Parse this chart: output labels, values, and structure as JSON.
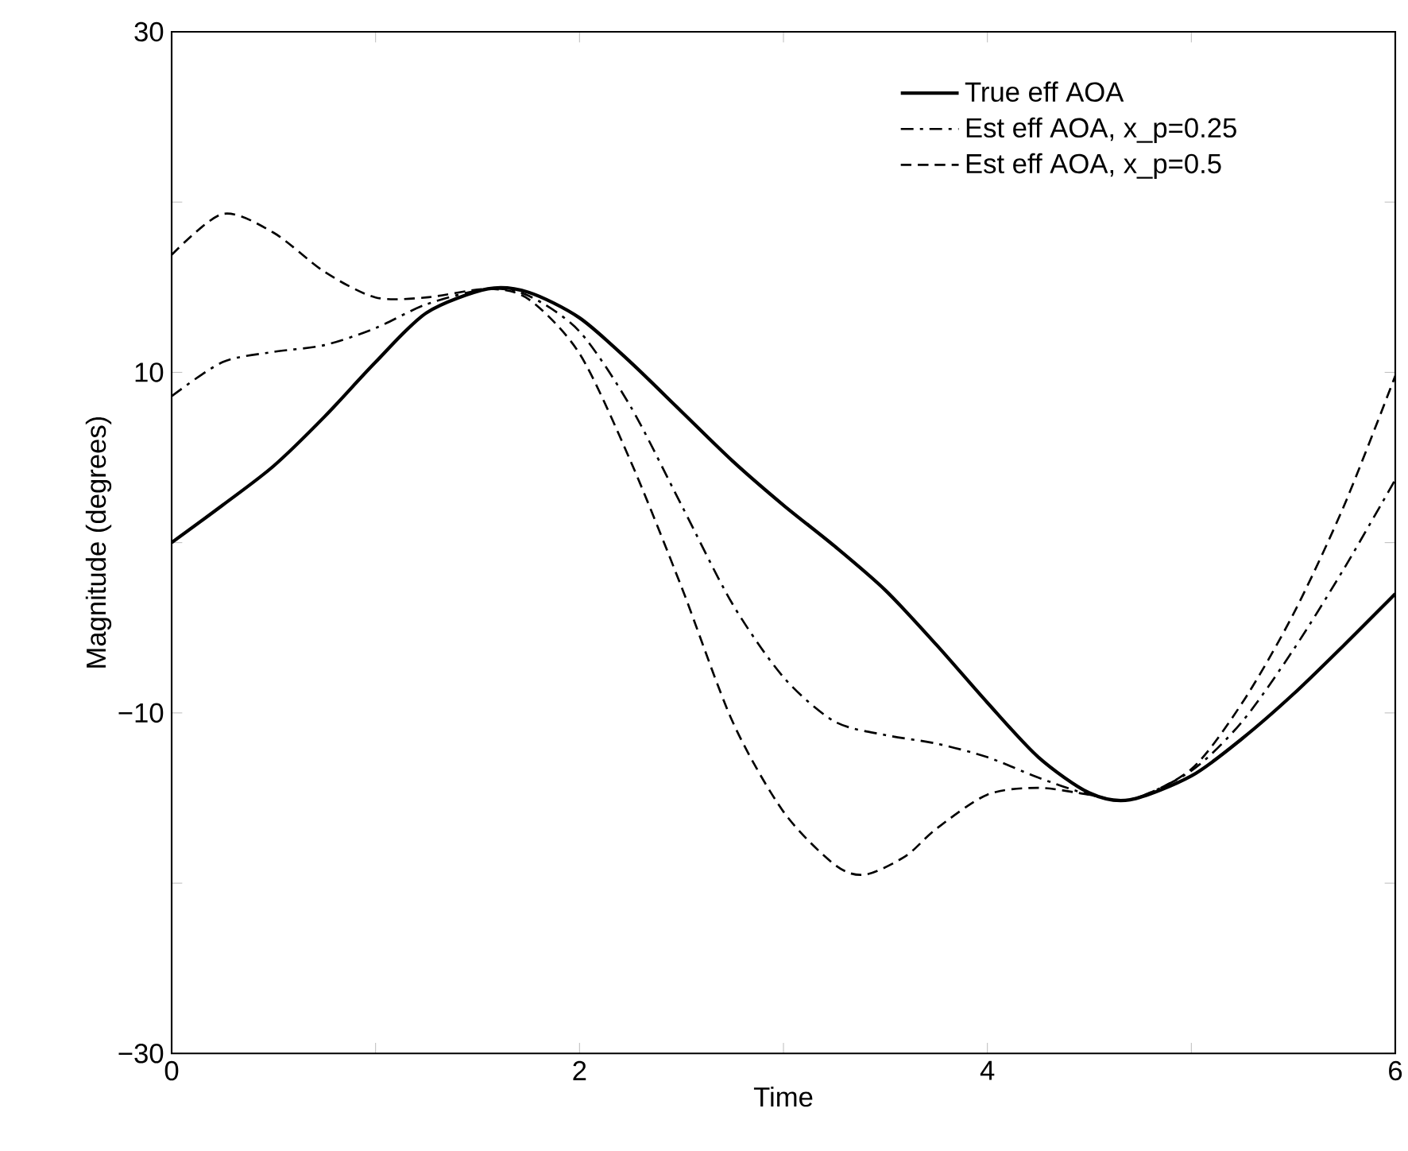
{
  "chart_data": {
    "type": "line",
    "xlabel": "Time",
    "ylabel": "Magnitude (degrees)",
    "xlim": [
      0,
      6
    ],
    "ylim": [
      -30,
      30
    ],
    "xticks": [
      0,
      {
        "value": 1,
        "label": null
      },
      2,
      {
        "value": 3,
        "label": null
      },
      4,
      {
        "value": 5,
        "label": null
      },
      6
    ],
    "yticks": [
      {
        "value": -30,
        "label": "−30"
      },
      {
        "value": -20,
        "label": null
      },
      {
        "value": -10,
        "label": "−10"
      },
      {
        "value": 0,
        "label": null
      },
      10,
      {
        "value": 20,
        "label": null
      },
      30
    ],
    "grid": false,
    "legend": "top right",
    "marker": "none",
    "series": [
      {
        "name": "True eff AOA",
        "color": "#000000",
        "line_style": "solid",
        "x": [
          0,
          0.25,
          0.5,
          0.75,
          1,
          1.25,
          1.55,
          1.75,
          2,
          2.25,
          2.5,
          2.75,
          3,
          3.25,
          3.5,
          3.75,
          4,
          4.25,
          4.5,
          4.7,
          5,
          5.25,
          5.5,
          5.75,
          6
        ],
        "values": [
          0,
          2.2,
          4.5,
          7.4,
          10.6,
          13.5,
          14.9,
          14.7,
          13.2,
          10.6,
          7.7,
          4.8,
          2.2,
          -0.2,
          -2.8,
          -6.0,
          -9.4,
          -12.6,
          -14.7,
          -15.1,
          -13.7,
          -11.5,
          -8.9,
          -6.0,
          -3.0
        ]
      },
      {
        "name": "Est eff AOA, x_p=0.25",
        "color": "#000000",
        "line_style": "dashdot",
        "x": [
          0,
          0.25,
          0.5,
          0.75,
          1,
          1.25,
          1.55,
          1.75,
          2,
          2.25,
          2.5,
          2.75,
          3,
          3.25,
          3.5,
          3.75,
          4,
          4.25,
          4.5,
          4.7,
          5,
          5.25,
          5.5,
          5.75,
          6
        ],
        "values": [
          8.6,
          10.6,
          11.2,
          11.6,
          12.6,
          14.0,
          14.9,
          14.5,
          12.4,
          8.0,
          2.2,
          -3.6,
          -7.9,
          -10.5,
          -11.3,
          -11.8,
          -12.6,
          -13.8,
          -14.8,
          -15.1,
          -13.4,
          -10.5,
          -6.3,
          -1.5,
          3.7
        ]
      },
      {
        "name": "Est eff AOA, x_p=0.5",
        "color": "#000000",
        "line_style": "dashed",
        "x": [
          0,
          0.25,
          0.5,
          0.75,
          1,
          1.25,
          1.55,
          1.75,
          2,
          2.25,
          2.5,
          2.75,
          3,
          3.25,
          3.4,
          3.6,
          3.75,
          4,
          4.25,
          4.5,
          4.7,
          5,
          5.25,
          5.5,
          5.75,
          6
        ],
        "values": [
          16.9,
          19.3,
          18.2,
          15.9,
          14.4,
          14.4,
          14.9,
          14.3,
          11.1,
          4.8,
          -2.6,
          -10.5,
          -15.8,
          -18.9,
          -19.5,
          -18.4,
          -16.8,
          -14.8,
          -14.4,
          -14.8,
          -15.1,
          -13.3,
          -9.4,
          -4.2,
          2.2,
          9.8
        ]
      }
    ]
  }
}
